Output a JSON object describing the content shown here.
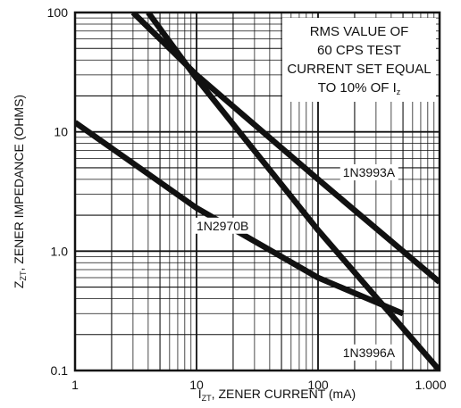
{
  "chart_data": {
    "type": "line",
    "x_scale": "log",
    "y_scale": "log",
    "xlim": [
      1,
      1000
    ],
    "ylim": [
      0.1,
      100
    ],
    "grid": true,
    "x_ticks": [
      "1",
      "10",
      "100",
      "1.000"
    ],
    "y_ticks": [
      "100",
      "10",
      "1.0",
      "0.1"
    ],
    "xlabel": {
      "prefix": "I",
      "sub": "ZT",
      "text": ", ZENER CURRENT (mA)"
    },
    "ylabel": {
      "prefix": "Z",
      "sub": "ZT",
      "text": ", ZENER IMPEDANCE (OHMS)"
    },
    "annotation": {
      "lines": [
        "RMS VALUE OF",
        "60 CPS TEST",
        "CURRENT SET EQUAL"
      ],
      "last_line_prefix": "TO 10% OF I",
      "last_line_sub": "z"
    },
    "series": [
      {
        "name": "1N2970B",
        "x": [
          1,
          10,
          100,
          500
        ],
        "y": [
          12,
          2.3,
          0.6,
          0.3
        ]
      },
      {
        "name": "1N3993A",
        "x": [
          3,
          10,
          100,
          1000
        ],
        "y": [
          100,
          30,
          4.0,
          0.55
        ]
      },
      {
        "name": "1N3996A",
        "x": [
          4,
          10,
          100,
          1000
        ],
        "y": [
          100,
          28,
          1.5,
          0.1
        ]
      }
    ],
    "series_labels": [
      {
        "name": "1N2970B",
        "at_x": 10,
        "at_y": 1.5
      },
      {
        "name": "1N3993A",
        "at_x": 160,
        "at_y": 4.2
      },
      {
        "name": "1N3996A",
        "at_x": 160,
        "at_y": 0.13
      }
    ]
  }
}
